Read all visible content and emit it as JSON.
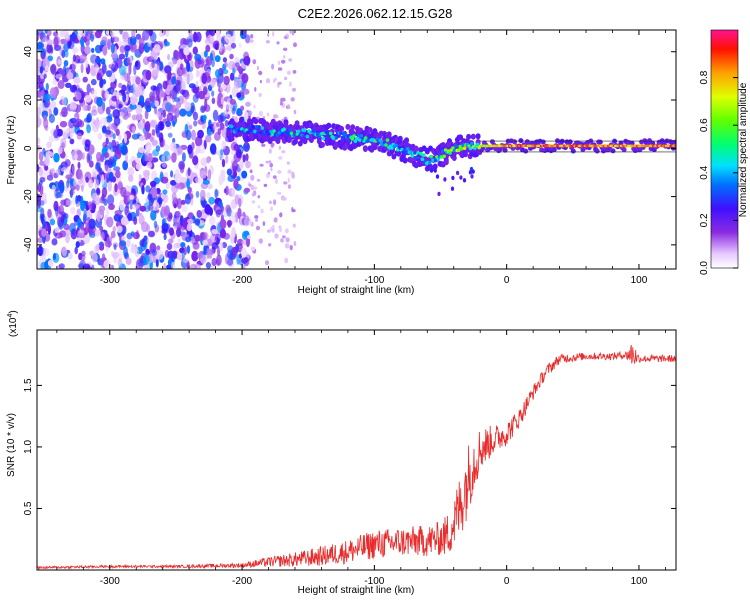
{
  "title": "C2E2.2026.062.12.15.G28",
  "chart_data": [
    {
      "type": "heatmap",
      "xlabel": "Height of straight line (km)",
      "ylabel": "Frequency (Hz)",
      "xlim": [
        -355,
        128
      ],
      "ylim": [
        -50,
        49
      ],
      "xticks": [
        -300,
        -200,
        -100,
        0,
        100
      ],
      "xtick_labels": [
        "-300",
        "-200",
        "-100",
        "0",
        "100"
      ],
      "yticks": [
        -40,
        -20,
        0,
        20,
        40
      ],
      "ytick_labels": [
        "-40",
        "-20",
        "0",
        "20",
        "40"
      ],
      "noise_region_x": [
        -355,
        -195
      ],
      "sparse_noise_x": [
        -195,
        -160
      ],
      "signal_trace": {
        "x": [
          -210,
          -190,
          -170,
          -150,
          -130,
          -110,
          -90,
          -75,
          -60,
          -50,
          -40,
          -30,
          -20,
          -10,
          0,
          20,
          40,
          60,
          80,
          100,
          128
        ],
        "freq": [
          8,
          7.5,
          6.5,
          6,
          5,
          4,
          2,
          -1,
          -5,
          -3,
          0,
          0.5,
          1,
          1,
          1,
          1,
          1,
          1,
          1,
          1,
          1
        ],
        "amplitude": [
          0.35,
          0.4,
          0.4,
          0.42,
          0.45,
          0.45,
          0.45,
          0.4,
          0.4,
          0.5,
          0.55,
          0.6,
          0.7,
          0.75,
          0.8,
          0.85,
          0.85,
          0.85,
          0.8,
          0.85,
          0.85
        ]
      },
      "colorbar": {
        "label": "Normalized spectral amplitude",
        "range": [
          0,
          1
        ],
        "ticks": [
          0.0,
          0.2,
          0.4,
          0.6,
          0.8
        ],
        "tick_labels": [
          "0.0",
          "0.2",
          "0.4",
          "0.6",
          "0.8"
        ]
      }
    },
    {
      "type": "line",
      "xlabel": "Height of straight line (km)",
      "ylabel": "SNR (10 * v/v)",
      "multiplier_label": "(x10",
      "multiplier_exp": "4",
      "multiplier_close": ")",
      "xlim": [
        -355,
        128
      ],
      "ylim": [
        0,
        1.95
      ],
      "xticks": [
        -300,
        -200,
        -100,
        0,
        100
      ],
      "xtick_labels": [
        "-300",
        "-200",
        "-100",
        "0",
        "100"
      ],
      "yticks": [
        0.5,
        1.0,
        1.5
      ],
      "ytick_labels": [
        "0.5",
        "1.0",
        "1.5"
      ],
      "series": [
        {
          "name": "SNR",
          "color": "#e82c2c",
          "x": [
            -355,
            -300,
            -250,
            -200,
            -180,
            -160,
            -140,
            -120,
            -100,
            -80,
            -60,
            -50,
            -45,
            -40,
            -35,
            -30,
            -25,
            -20,
            -10,
            0,
            10,
            20,
            30,
            40,
            60,
            80,
            90,
            95,
            100,
            110,
            128
          ],
          "y": [
            0.02,
            0.03,
            0.03,
            0.04,
            0.07,
            0.09,
            0.12,
            0.16,
            0.22,
            0.24,
            0.25,
            0.27,
            0.3,
            0.4,
            0.55,
            0.75,
            0.9,
            1.0,
            1.07,
            1.12,
            1.25,
            1.45,
            1.62,
            1.72,
            1.74,
            1.74,
            1.75,
            1.77,
            1.72,
            1.72,
            1.72
          ],
          "noise": [
            0.01,
            0.01,
            0.01,
            0.02,
            0.04,
            0.06,
            0.08,
            0.1,
            0.12,
            0.12,
            0.13,
            0.14,
            0.18,
            0.22,
            0.28,
            0.3,
            0.25,
            0.18,
            0.12,
            0.1,
            0.08,
            0.06,
            0.05,
            0.04,
            0.03,
            0.03,
            0.03,
            0.12,
            0.03,
            0.03,
            0.03
          ]
        }
      ]
    }
  ]
}
